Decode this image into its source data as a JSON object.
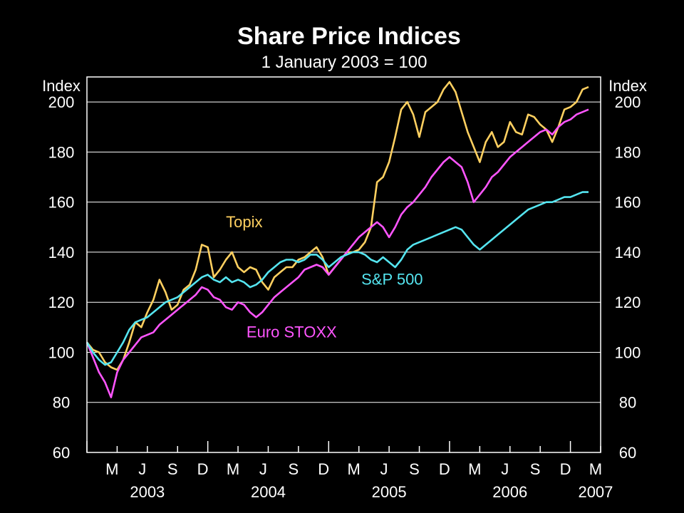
{
  "chart_data": {
    "type": "line",
    "title": "Share Price Indices",
    "subtitle": "1 January 2003 = 100",
    "ylabel_left": "Index",
    "ylabel_right": "Index",
    "ylim": [
      60,
      210
    ],
    "yticks": [
      60,
      80,
      100,
      120,
      140,
      160,
      180,
      200
    ],
    "xlim": [
      2003.0,
      2007.25
    ],
    "x_month_labels": [
      "M",
      "J",
      "S",
      "D",
      "M",
      "J",
      "S",
      "D",
      "M",
      "J",
      "S",
      "D",
      "M",
      "J",
      "S",
      "D",
      "M"
    ],
    "x_year_labels": [
      "2003",
      "2004",
      "2005",
      "2006",
      "2007"
    ],
    "grid": true,
    "series": [
      {
        "name": "Topix",
        "color": "#ffd060",
        "x": [
          2003.0,
          2003.05,
          2003.1,
          2003.15,
          2003.2,
          2003.25,
          2003.3,
          2003.35,
          2003.4,
          2003.45,
          2003.5,
          2003.55,
          2003.6,
          2003.65,
          2003.7,
          2003.75,
          2003.8,
          2003.85,
          2003.9,
          2003.95,
          2004.0,
          2004.05,
          2004.1,
          2004.15,
          2004.2,
          2004.25,
          2004.3,
          2004.35,
          2004.4,
          2004.45,
          2004.5,
          2004.55,
          2004.6,
          2004.65,
          2004.7,
          2004.75,
          2004.8,
          2004.85,
          2004.9,
          2004.95,
          2005.0,
          2005.05,
          2005.1,
          2005.15,
          2005.2,
          2005.25,
          2005.3,
          2005.35,
          2005.4,
          2005.45,
          2005.5,
          2005.55,
          2005.6,
          2005.65,
          2005.7,
          2005.75,
          2005.8,
          2005.85,
          2005.9,
          2005.95,
          2006.0,
          2006.05,
          2006.1,
          2006.15,
          2006.2,
          2006.25,
          2006.3,
          2006.35,
          2006.4,
          2006.45,
          2006.5,
          2006.55,
          2006.6,
          2006.65,
          2006.7,
          2006.75,
          2006.8,
          2006.85,
          2006.9,
          2006.95,
          2007.0,
          2007.05,
          2007.1,
          2007.15
        ],
        "values": [
          104,
          101,
          100,
          96,
          94,
          93,
          97,
          104,
          112,
          110,
          116,
          121,
          129,
          124,
          117,
          119,
          125,
          127,
          133,
          143,
          142,
          130,
          133,
          137,
          140,
          134,
          132,
          134,
          133,
          128,
          125,
          130,
          132,
          134,
          134,
          137,
          138,
          140,
          142,
          138,
          131,
          134,
          137,
          140,
          140,
          141,
          144,
          150,
          168,
          170,
          176,
          186,
          197,
          200,
          195,
          186,
          196,
          198,
          200,
          205,
          208,
          204,
          196,
          188,
          182,
          176,
          184,
          188,
          182,
          184,
          192,
          188,
          187,
          195,
          194,
          191,
          189,
          184,
          190,
          197,
          198,
          200,
          205,
          206
        ]
      },
      {
        "name": "Euro STOXX",
        "color": "#ff55ff",
        "x": [
          2003.0,
          2003.05,
          2003.1,
          2003.15,
          2003.2,
          2003.25,
          2003.3,
          2003.35,
          2003.4,
          2003.45,
          2003.5,
          2003.55,
          2003.6,
          2003.65,
          2003.7,
          2003.75,
          2003.8,
          2003.85,
          2003.9,
          2003.95,
          2004.0,
          2004.05,
          2004.1,
          2004.15,
          2004.2,
          2004.25,
          2004.3,
          2004.35,
          2004.4,
          2004.45,
          2004.5,
          2004.55,
          2004.6,
          2004.65,
          2004.7,
          2004.75,
          2004.8,
          2004.85,
          2004.9,
          2004.95,
          2005.0,
          2005.05,
          2005.1,
          2005.15,
          2005.2,
          2005.25,
          2005.3,
          2005.35,
          2005.4,
          2005.45,
          2005.5,
          2005.55,
          2005.6,
          2005.65,
          2005.7,
          2005.75,
          2005.8,
          2005.85,
          2005.9,
          2005.95,
          2006.0,
          2006.05,
          2006.1,
          2006.15,
          2006.2,
          2006.25,
          2006.3,
          2006.35,
          2006.4,
          2006.45,
          2006.5,
          2006.55,
          2006.6,
          2006.65,
          2006.7,
          2006.75,
          2006.8,
          2006.85,
          2006.9,
          2006.95,
          2007.0,
          2007.05,
          2007.1,
          2007.15
        ],
        "values": [
          104,
          98,
          92,
          88,
          82,
          92,
          97,
          100,
          103,
          106,
          107,
          108,
          111,
          113,
          115,
          117,
          119,
          121,
          123,
          126,
          125,
          122,
          121,
          118,
          117,
          120,
          119,
          116,
          114,
          116,
          119,
          122,
          124,
          126,
          128,
          130,
          133,
          134,
          135,
          134,
          131,
          134,
          137,
          140,
          143,
          146,
          148,
          150,
          152,
          150,
          146,
          150,
          155,
          158,
          160,
          163,
          166,
          170,
          173,
          176,
          178,
          176,
          174,
          168,
          160,
          163,
          166,
          170,
          172,
          175,
          178,
          180,
          182,
          184,
          186,
          188,
          189,
          187,
          190,
          192,
          193,
          195,
          196,
          197
        ]
      },
      {
        "name": "S&P 500",
        "color": "#55e5f0",
        "x": [
          2003.0,
          2003.05,
          2003.1,
          2003.15,
          2003.2,
          2003.25,
          2003.3,
          2003.35,
          2003.4,
          2003.45,
          2003.5,
          2003.55,
          2003.6,
          2003.65,
          2003.7,
          2003.75,
          2003.8,
          2003.85,
          2003.9,
          2003.95,
          2004.0,
          2004.05,
          2004.1,
          2004.15,
          2004.2,
          2004.25,
          2004.3,
          2004.35,
          2004.4,
          2004.45,
          2004.5,
          2004.55,
          2004.6,
          2004.65,
          2004.7,
          2004.75,
          2004.8,
          2004.85,
          2004.9,
          2004.95,
          2005.0,
          2005.05,
          2005.1,
          2005.15,
          2005.2,
          2005.25,
          2005.3,
          2005.35,
          2005.4,
          2005.45,
          2005.5,
          2005.55,
          2005.6,
          2005.65,
          2005.7,
          2005.75,
          2005.8,
          2005.85,
          2005.9,
          2005.95,
          2006.0,
          2006.05,
          2006.1,
          2006.15,
          2006.2,
          2006.25,
          2006.3,
          2006.35,
          2006.4,
          2006.45,
          2006.5,
          2006.55,
          2006.6,
          2006.65,
          2006.7,
          2006.75,
          2006.8,
          2006.85,
          2006.9,
          2006.95,
          2007.0,
          2007.05,
          2007.1,
          2007.15
        ],
        "values": [
          104,
          100,
          97,
          95,
          96,
          100,
          104,
          109,
          112,
          113,
          114,
          116,
          118,
          120,
          121,
          122,
          124,
          126,
          128,
          130,
          131,
          129,
          128,
          130,
          128,
          129,
          128,
          126,
          127,
          129,
          132,
          134,
          136,
          137,
          137,
          136,
          137,
          139,
          139,
          137,
          134,
          136,
          138,
          139,
          140,
          140,
          139,
          137,
          136,
          138,
          136,
          134,
          137,
          141,
          143,
          144,
          145,
          146,
          147,
          148,
          149,
          150,
          149,
          146,
          143,
          141,
          143,
          145,
          147,
          149,
          151,
          153,
          155,
          157,
          158,
          159,
          160,
          160,
          161,
          162,
          162,
          163,
          164,
          164
        ]
      }
    ],
    "annotations": [
      {
        "text": "Topix",
        "series": "Topix",
        "x": 2004.15,
        "y": 150,
        "anchor": "start"
      },
      {
        "text": "S&P 500",
        "series": "S&P 500",
        "x": 2005.27,
        "y": 127,
        "anchor": "start"
      },
      {
        "text": "Euro STOXX",
        "series": "Euro STOXX",
        "x": 2004.32,
        "y": 106,
        "anchor": "start"
      }
    ]
  }
}
